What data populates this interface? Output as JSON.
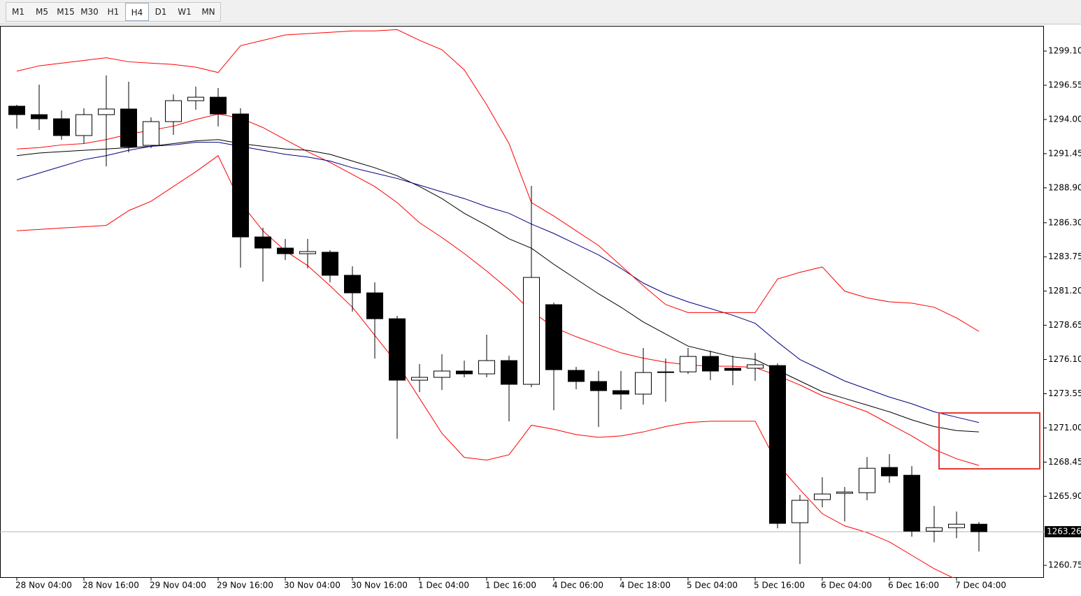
{
  "toolbar": {
    "timeframes": [
      "M1",
      "M5",
      "M15",
      "M30",
      "H1",
      "H4",
      "D1",
      "W1",
      "MN"
    ],
    "active": "H4"
  },
  "chart_data": {
    "type": "candlestick",
    "categories": [
      "28 Nov 04:00",
      null,
      null,
      "28 Nov 16:00",
      null,
      null,
      "29 Nov 04:00",
      null,
      null,
      "29 Nov 16:00",
      null,
      null,
      "30 Nov 04:00",
      null,
      null,
      "30 Nov 16:00",
      null,
      null,
      "1 Dec 04:00",
      null,
      null,
      "1 Dec 16:00",
      null,
      null,
      "4 Dec 06:00",
      null,
      null,
      "4 Dec 18:00",
      null,
      null,
      "5 Dec 04:00",
      null,
      null,
      "5 Dec 16:00",
      null,
      null,
      "6 Dec 04:00",
      null,
      null,
      "6 Dec 16:00",
      null,
      null,
      "7 Dec 04:00",
      null
    ],
    "open": [
      1294.99,
      1294.36,
      1294.05,
      1292.8,
      1294.36,
      1294.78,
      1292.07,
      1293.84,
      1295.4,
      1295.66,
      1294.41,
      1285.24,
      1284.41,
      1283.99,
      1284.1,
      1282.38,
      1281.07,
      1279.14,
      1274.56,
      1274.77,
      1275.24,
      1275.03,
      1276.02,
      1274.25,
      1280.19,
      1275.29,
      1274.46,
      1273.78,
      1273.52,
      1275.13,
      1275.18,
      1276.33,
      1275.45,
      1275.45,
      1275.65,
      1263.93,
      1265.65,
      1266.12,
      1266.17,
      1268.05,
      1267.47,
      1263.3,
      1263.56,
      1263.82
    ],
    "high": [
      1295.09,
      1296.6,
      1294.67,
      1294.83,
      1297.28,
      1296.81,
      1294.15,
      1295.87,
      1296.45,
      1296.34,
      1294.83,
      1285.92,
      1285.09,
      1285.09,
      1284.25,
      1283.05,
      1281.85,
      1279.35,
      1275.76,
      1276.49,
      1276.02,
      1277.95,
      1276.38,
      1289.05,
      1280.34,
      1275.55,
      1275.24,
      1275.24,
      1276.96,
      1276.17,
      1276.96,
      1276.75,
      1276.38,
      1276.59,
      1275.81,
      1266.01,
      1267.32,
      1266.59,
      1268.83,
      1269.04,
      1268.15,
      1265.18,
      1264.76,
      1263.98
    ],
    "low": [
      1293.32,
      1293.21,
      1292.49,
      1292.22,
      1290.5,
      1291.55,
      1291.86,
      1292.85,
      1294.73,
      1293.48,
      1282.95,
      1281.91,
      1283.52,
      1282.9,
      1281.85,
      1279.67,
      1276.17,
      1270.18,
      1273.67,
      1273.83,
      1274.77,
      1274.77,
      1271.48,
      1274.04,
      1272.32,
      1273.88,
      1271.07,
      1272.37,
      1272.74,
      1272.94,
      1275.03,
      1274.56,
      1274.19,
      1274.51,
      1263.51,
      1260.85,
      1265.08,
      1264.03,
      1265.6,
      1266.9,
      1262.89,
      1262.47,
      1262.78,
      1261.79
    ],
    "close": [
      1294.36,
      1294.05,
      1292.8,
      1294.36,
      1294.78,
      1291.96,
      1293.84,
      1295.4,
      1295.66,
      1294.41,
      1285.24,
      1284.41,
      1283.99,
      1284.15,
      1282.38,
      1281.07,
      1279.14,
      1274.56,
      1274.77,
      1275.24,
      1275.03,
      1276.02,
      1274.25,
      1282.22,
      1275.34,
      1274.46,
      1273.78,
      1273.52,
      1275.13,
      1275.18,
      1276.33,
      1275.24,
      1275.29,
      1275.71,
      1263.88,
      1265.6,
      1266.07,
      1266.22,
      1267.99,
      1267.42,
      1263.3,
      1263.56,
      1263.82,
      1263.26
    ],
    "up_color": "#ffffff",
    "down_color": "#000000",
    "wick_color": "#000000",
    "indicators": [
      {
        "color": "#ff0000",
        "values": [
          1291.8,
          1291.9,
          1292.1,
          1292.2,
          1292.5,
          1292.9,
          1293.2,
          1293.5,
          1294.0,
          1294.4,
          1294.1,
          1293.4,
          1292.5,
          1291.6,
          1290.8,
          1289.9,
          1289.0,
          1287.8,
          1286.3,
          1285.2,
          1284.0,
          1282.7,
          1281.3,
          1279.7,
          1278.5,
          1277.8,
          1277.2,
          1276.6,
          1276.2,
          1275.9,
          1275.7,
          1275.6,
          1275.6,
          1275.5,
          1274.9,
          1274.2,
          1273.4,
          1272.8,
          1272.2,
          1271.3,
          1270.4,
          1269.4,
          1268.7,
          1268.2
        ]
      },
      {
        "color": "#000000",
        "values": [
          1291.3,
          1291.5,
          1291.6,
          1291.7,
          1291.8,
          1291.9,
          1292.0,
          1292.2,
          1292.4,
          1292.5,
          1292.2,
          1292.0,
          1291.8,
          1291.7,
          1291.4,
          1290.9,
          1290.4,
          1289.8,
          1289.0,
          1288.1,
          1287.0,
          1286.1,
          1285.1,
          1284.4,
          1283.2,
          1282.1,
          1281.0,
          1280.0,
          1278.9,
          1278.0,
          1277.1,
          1276.7,
          1276.3,
          1276.1,
          1275.3,
          1274.5,
          1273.7,
          1273.2,
          1272.7,
          1272.2,
          1271.6,
          1271.1,
          1270.8,
          1270.7
        ]
      },
      {
        "color": "#000080",
        "values": [
          1289.5,
          1290.0,
          1290.5,
          1291.0,
          1291.3,
          1291.7,
          1292.0,
          1292.1,
          1292.3,
          1292.3,
          1292.0,
          1291.7,
          1291.4,
          1291.2,
          1290.9,
          1290.4,
          1290.0,
          1289.6,
          1289.1,
          1288.6,
          1288.1,
          1287.5,
          1287.0,
          1286.2,
          1285.5,
          1284.7,
          1283.9,
          1282.9,
          1281.8,
          1281.0,
          1280.4,
          1279.9,
          1279.4,
          1278.8,
          1277.4,
          1276.1,
          1275.3,
          1274.5,
          1273.9,
          1273.3,
          1272.8,
          1272.2,
          1271.8,
          1271.4
        ]
      },
      {
        "color": "#ff0000",
        "values": [
          1297.6,
          1298.0,
          1298.2,
          1298.4,
          1298.6,
          1298.3,
          1298.2,
          1298.1,
          1297.9,
          1297.5,
          1299.5,
          1299.9,
          1300.3,
          1300.4,
          1300.5,
          1300.6,
          1300.6,
          1300.7,
          1299.9,
          1299.2,
          1297.7,
          1295.1,
          1292.2,
          1287.8,
          1286.8,
          1285.7,
          1284.6,
          1283.1,
          1281.6,
          1280.2,
          1279.6,
          1279.6,
          1279.6,
          1279.6,
          1282.1,
          1282.6,
          1283.0,
          1281.2,
          1280.7,
          1280.4,
          1280.3,
          1280.0,
          1279.2,
          1278.2
        ]
      },
      {
        "color": "#ff0000",
        "values": [
          1285.7,
          1285.8,
          1285.9,
          1286.0,
          1286.1,
          1287.2,
          1287.9,
          1289.0,
          1290.1,
          1291.3,
          1287.8,
          1285.7,
          1284.2,
          1283.1,
          1281.6,
          1280.0,
          1277.9,
          1275.8,
          1273.2,
          1270.6,
          1268.8,
          1268.6,
          1269.0,
          1271.2,
          1270.9,
          1270.5,
          1270.3,
          1270.4,
          1270.7,
          1271.1,
          1271.4,
          1271.5,
          1271.5,
          1271.5,
          1268.3,
          1266.4,
          1264.6,
          1263.7,
          1263.2,
          1262.5,
          1261.5,
          1260.5,
          1259.7,
          null
        ]
      }
    ],
    "current_price": 1263.26,
    "ylim": [
      1259.82,
      1300.98
    ],
    "yticks": [
      {
        "value": 1260.75,
        "label": "1260.75"
      },
      {
        "value": 1265.9,
        "label": "1265.90"
      },
      {
        "value": 1268.45,
        "label": "1268.45"
      },
      {
        "value": 1271.0,
        "label": "1271.00"
      },
      {
        "value": 1273.55,
        "label": "1273.55"
      },
      {
        "value": 1276.1,
        "label": "1276.10"
      },
      {
        "value": 1278.65,
        "label": "1278.65"
      },
      {
        "value": 1281.2,
        "label": "1281.20"
      },
      {
        "value": 1283.75,
        "label": "1283.75"
      },
      {
        "value": 1286.3,
        "label": "1286.30"
      },
      {
        "value": 1288.9,
        "label": "1288.90"
      },
      {
        "value": 1291.45,
        "label": "1291.45"
      },
      {
        "value": 1294.0,
        "label": "1294.00"
      },
      {
        "value": 1296.55,
        "label": "1296.55"
      },
      {
        "value": 1299.1,
        "label": "1299.10"
      }
    ]
  }
}
